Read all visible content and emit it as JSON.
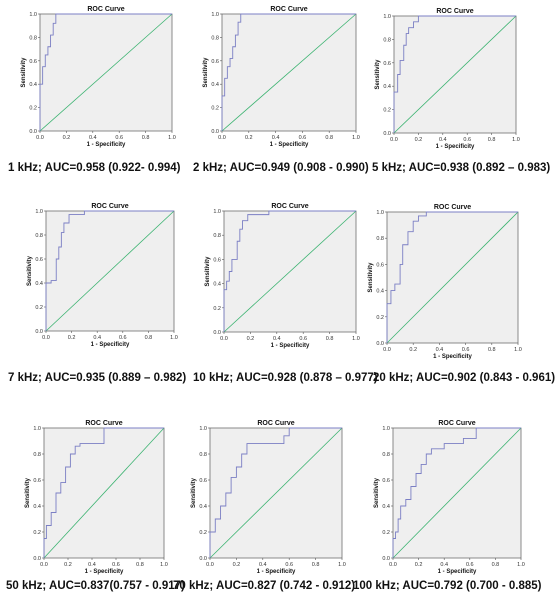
{
  "chart_data": [
    {
      "type": "line",
      "title": "ROC Curve",
      "xlabel": "1 - Specificity",
      "ylabel": "Sensitivity",
      "xlim": [
        0,
        1
      ],
      "ylim": [
        0,
        1
      ],
      "xticks": [
        "0.0",
        "0.2",
        "0.4",
        "0.6",
        "0.8",
        "1.0"
      ],
      "yticks": [
        "0.0",
        "0.2",
        "0.4",
        "0.6",
        "0.8",
        "1.0"
      ],
      "caption": "1 kHz;  AUC=0.958 (0.922- 0.994)",
      "colors": {
        "roc": "#7b7fc4",
        "reference": "#3cb371",
        "plot_bg": "#efefef"
      },
      "series": [
        {
          "x": [
            0,
            0,
            0.02,
            0.02,
            0.04,
            0.04,
            0.06,
            0.06,
            0.08,
            0.08,
            0.1,
            0.1,
            0.12,
            0.12,
            1.0
          ],
          "y": [
            0,
            0.4,
            0.4,
            0.55,
            0.55,
            0.65,
            0.65,
            0.72,
            0.72,
            0.82,
            0.82,
            0.92,
            0.92,
            1.0,
            1.0
          ]
        }
      ]
    },
    {
      "type": "line",
      "title": "ROC Curve",
      "xlabel": "1 - Specificity",
      "ylabel": "Sensitivity",
      "xlim": [
        0,
        1
      ],
      "ylim": [
        0,
        1
      ],
      "xticks": [
        "0.0",
        "0.2",
        "0.4",
        "0.6",
        "0.8",
        "1.0"
      ],
      "yticks": [
        "0.0",
        "0.2",
        "0.4",
        "0.6",
        "0.8",
        "1.0"
      ],
      "caption": "2 kHz; AUC=0.949 (0.908 - 0.990)",
      "colors": {
        "roc": "#7b7fc4",
        "reference": "#3cb371",
        "plot_bg": "#efefef"
      },
      "series": [
        {
          "x": [
            0,
            0,
            0.02,
            0.02,
            0.04,
            0.04,
            0.06,
            0.06,
            0.08,
            0.08,
            0.1,
            0.1,
            0.12,
            0.12,
            0.14,
            0.14,
            1.0
          ],
          "y": [
            0,
            0.3,
            0.3,
            0.45,
            0.45,
            0.55,
            0.55,
            0.62,
            0.62,
            0.72,
            0.72,
            0.82,
            0.82,
            0.93,
            0.93,
            1.0,
            1.0
          ]
        }
      ]
    },
    {
      "type": "line",
      "title": "ROC Curve",
      "xlabel": "1 - Specificity",
      "ylabel": "Sensitivity",
      "xlim": [
        0,
        1
      ],
      "ylim": [
        0,
        1
      ],
      "xticks": [
        "0.0",
        "0.2",
        "0.4",
        "0.6",
        "0.8",
        "1.0"
      ],
      "yticks": [
        "0.0",
        "0.2",
        "0.4",
        "0.6",
        "0.8",
        "1.0"
      ],
      "caption": "5 kHz; AUC=0.938 (0.892 – 0.983)",
      "colors": {
        "roc": "#7b7fc4",
        "reference": "#3cb371",
        "plot_bg": "#efefef"
      },
      "series": [
        {
          "x": [
            0,
            0,
            0.03,
            0.03,
            0.05,
            0.05,
            0.08,
            0.08,
            0.1,
            0.1,
            0.12,
            0.12,
            0.16,
            0.16,
            0.2,
            0.2,
            1.0
          ],
          "y": [
            0,
            0.35,
            0.35,
            0.5,
            0.5,
            0.62,
            0.62,
            0.75,
            0.75,
            0.85,
            0.85,
            0.9,
            0.9,
            0.95,
            0.95,
            1.0,
            1.0
          ]
        }
      ]
    },
    {
      "type": "line",
      "title": "ROC Curve",
      "xlabel": "1 - Specificity",
      "ylabel": "Sensitivity",
      "xlim": [
        0,
        1
      ],
      "ylim": [
        0,
        1
      ],
      "xticks": [
        "0.0",
        "0.2",
        "0.4",
        "0.6",
        "0.8",
        "1.0"
      ],
      "yticks": [
        "0.0",
        "0.2",
        "0.4",
        "0.6",
        "0.8",
        "1.0"
      ],
      "caption": "7 kHz; AUC=0.935 (0.889 – 0.982)",
      "colors": {
        "roc": "#7b7fc4",
        "reference": "#3cb371",
        "plot_bg": "#efefef"
      },
      "series": [
        {
          "x": [
            0,
            0,
            0.04,
            0.04,
            0.08,
            0.08,
            0.1,
            0.1,
            0.12,
            0.12,
            0.14,
            0.14,
            0.18,
            0.18,
            0.3,
            0.3,
            1.0
          ],
          "y": [
            0,
            0.4,
            0.4,
            0.42,
            0.42,
            0.6,
            0.6,
            0.7,
            0.7,
            0.82,
            0.82,
            0.9,
            0.9,
            0.97,
            0.97,
            1.0,
            1.0
          ]
        }
      ]
    },
    {
      "type": "line",
      "title": "ROC Curve",
      "xlabel": "1 - Specificity",
      "ylabel": "Sensitivity",
      "xlim": [
        0,
        1
      ],
      "ylim": [
        0,
        1
      ],
      "xticks": [
        "0.0",
        "0.2",
        "0.4",
        "0.6",
        "0.8",
        "1.0"
      ],
      "yticks": [
        "0.0",
        "0.2",
        "0.4",
        "0.6",
        "0.8",
        "1.0"
      ],
      "caption": "10 kHz; AUC=0.928 (0.878 – 0.977)",
      "colors": {
        "roc": "#7b7fc4",
        "reference": "#3cb371",
        "plot_bg": "#efefef"
      },
      "series": [
        {
          "x": [
            0,
            0,
            0.02,
            0.02,
            0.04,
            0.04,
            0.06,
            0.06,
            0.1,
            0.1,
            0.12,
            0.12,
            0.14,
            0.14,
            0.18,
            0.18,
            0.34,
            0.34,
            1.0
          ],
          "y": [
            0,
            0.35,
            0.35,
            0.42,
            0.42,
            0.5,
            0.5,
            0.6,
            0.6,
            0.75,
            0.75,
            0.85,
            0.85,
            0.92,
            0.92,
            0.97,
            0.97,
            1.0,
            1.0
          ]
        }
      ]
    },
    {
      "type": "line",
      "title": "ROC Curve",
      "xlabel": "1 - Specificity",
      "ylabel": "Sensitivity",
      "xlim": [
        0,
        1
      ],
      "ylim": [
        0,
        1
      ],
      "xticks": [
        "0.0",
        "0.2",
        "0.4",
        "0.6",
        "0.8",
        "1.0"
      ],
      "yticks": [
        "0.0",
        "0.2",
        "0.4",
        "0.6",
        "0.8",
        "1.0"
      ],
      "caption": "20 kHz; AUC=0.902 (0.843 - 0.961)",
      "colors": {
        "roc": "#7b7fc4",
        "reference": "#3cb371",
        "plot_bg": "#efefef"
      },
      "series": [
        {
          "x": [
            0,
            0,
            0.03,
            0.03,
            0.06,
            0.06,
            0.1,
            0.1,
            0.12,
            0.12,
            0.16,
            0.16,
            0.2,
            0.2,
            0.24,
            0.24,
            0.3,
            0.3,
            1.0
          ],
          "y": [
            0,
            0.3,
            0.3,
            0.4,
            0.4,
            0.45,
            0.45,
            0.6,
            0.6,
            0.75,
            0.75,
            0.85,
            0.85,
            0.93,
            0.93,
            0.97,
            0.97,
            1.0,
            1.0
          ]
        }
      ]
    },
    {
      "type": "line",
      "title": "ROC Curve",
      "xlabel": "1 - Specificity",
      "ylabel": "Sensitivity",
      "xlim": [
        0,
        1
      ],
      "ylim": [
        0,
        1
      ],
      "xticks": [
        "0.0",
        "0.2",
        "0.4",
        "0.6",
        "0.8",
        "1.0"
      ],
      "yticks": [
        "0.0",
        "0.2",
        "0.4",
        "0.6",
        "0.8",
        "1.0"
      ],
      "caption": "50 kHz; AUC=0.837(0.757 - 0.917)",
      "colors": {
        "roc": "#7b7fc4",
        "reference": "#3cb371",
        "plot_bg": "#efefef"
      },
      "series": [
        {
          "x": [
            0,
            0,
            0.02,
            0.02,
            0.06,
            0.06,
            0.1,
            0.1,
            0.14,
            0.14,
            0.18,
            0.18,
            0.22,
            0.22,
            0.26,
            0.26,
            0.3,
            0.3,
            0.5,
            0.5,
            1.0
          ],
          "y": [
            0,
            0.15,
            0.15,
            0.25,
            0.25,
            0.35,
            0.35,
            0.5,
            0.5,
            0.58,
            0.58,
            0.7,
            0.7,
            0.8,
            0.8,
            0.86,
            0.86,
            0.88,
            0.88,
            1.0,
            1.0
          ]
        }
      ]
    },
    {
      "type": "line",
      "title": "ROC Curve",
      "xlabel": "1 - Specificity",
      "ylabel": "Sensitivity",
      "xlim": [
        0,
        1
      ],
      "ylim": [
        0,
        1
      ],
      "xticks": [
        "0.0",
        "0.2",
        "0.4",
        "0.6",
        "0.8",
        "1.0"
      ],
      "yticks": [
        "0.0",
        "0.2",
        "0.4",
        "0.6",
        "0.8",
        "1.0"
      ],
      "caption": "70 kHz; AUC=0.827 (0.742 - 0.912)",
      "colors": {
        "roc": "#7b7fc4",
        "reference": "#3cb371",
        "plot_bg": "#efefef"
      },
      "series": [
        {
          "x": [
            0,
            0,
            0.04,
            0.04,
            0.08,
            0.08,
            0.12,
            0.12,
            0.16,
            0.16,
            0.2,
            0.2,
            0.24,
            0.24,
            0.28,
            0.28,
            0.56,
            0.56,
            0.6,
            0.6,
            1.0
          ],
          "y": [
            0,
            0.2,
            0.2,
            0.3,
            0.3,
            0.4,
            0.4,
            0.5,
            0.5,
            0.62,
            0.62,
            0.7,
            0.7,
            0.8,
            0.8,
            0.88,
            0.88,
            0.94,
            0.94,
            1.0,
            1.0
          ]
        }
      ]
    },
    {
      "type": "line",
      "title": "ROC Curve",
      "xlabel": "1 - Specificity",
      "ylabel": "Sensitivity",
      "xlim": [
        0,
        1
      ],
      "ylim": [
        0,
        1
      ],
      "xticks": [
        "0.0",
        "0.2",
        "0.4",
        "0.6",
        "0.8",
        "1.0"
      ],
      "yticks": [
        "0.0",
        "0.2",
        "0.4",
        "0.6",
        "0.8",
        "1.0"
      ],
      "caption": "100 kHz; AUC=0.792 (0.700 - 0.885)",
      "colors": {
        "roc": "#7b7fc4",
        "reference": "#3cb371",
        "plot_bg": "#efefef"
      },
      "series": [
        {
          "x": [
            0,
            0,
            0.02,
            0.02,
            0.04,
            0.04,
            0.06,
            0.06,
            0.1,
            0.1,
            0.14,
            0.14,
            0.18,
            0.18,
            0.22,
            0.22,
            0.26,
            0.26,
            0.3,
            0.3,
            0.4,
            0.4,
            0.55,
            0.55,
            0.65,
            0.65,
            1.0
          ],
          "y": [
            0,
            0.15,
            0.15,
            0.2,
            0.2,
            0.3,
            0.3,
            0.4,
            0.4,
            0.45,
            0.45,
            0.55,
            0.55,
            0.65,
            0.65,
            0.72,
            0.72,
            0.8,
            0.8,
            0.84,
            0.84,
            0.88,
            0.88,
            0.92,
            0.92,
            1.0,
            1.0
          ]
        }
      ]
    }
  ]
}
